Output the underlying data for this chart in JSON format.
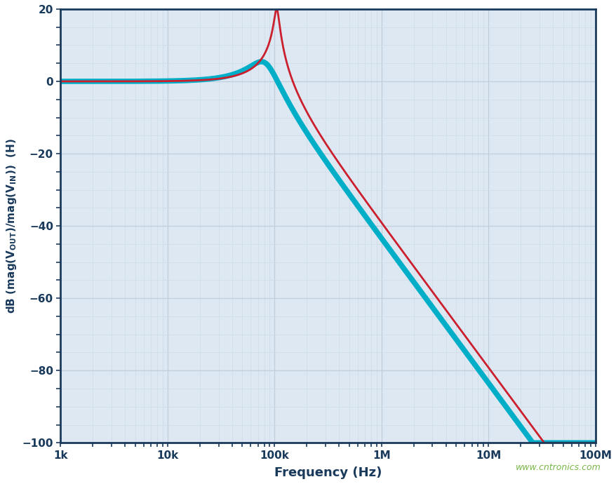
{
  "xlabel": "Frequency (Hz)",
  "xmin": 1000.0,
  "xmax": 100000000.0,
  "ymin": -100,
  "ymax": 20,
  "yticks": [
    20,
    0,
    -20,
    -40,
    -60,
    -80,
    -100
  ],
  "xtick_labels": [
    "1k",
    "10k",
    "100k",
    "1M",
    "10M",
    "100M"
  ],
  "xtick_values": [
    1000.0,
    10000.0,
    100000.0,
    1000000.0,
    10000000.0,
    100000000.0
  ],
  "color_red": "#cc1f2e",
  "color_cyan": "#00aec8",
  "color_navy": "#1a3a5c",
  "color_grid_major": "#c0cedd",
  "color_grid_minor": "#d0dae8",
  "color_bg_plot": "#dde8f2",
  "color_bg_fig": "#ffffff",
  "watermark_text": "www.cntronics.com",
  "watermark_color": "#7ab648",
  "lw_cyan": 5.5,
  "lw_red": 2.0,
  "f0_red": 105000,
  "Q_red": 10,
  "f0_cyan": 82000,
  "Q_cyan": 1.8
}
